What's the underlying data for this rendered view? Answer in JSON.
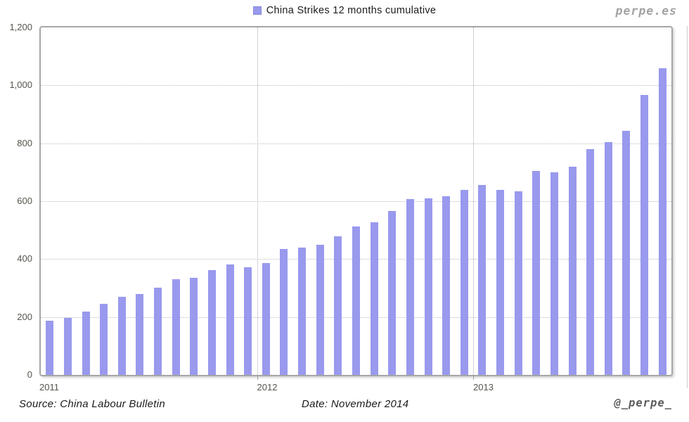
{
  "branding": {
    "site": "perpe.es",
    "handle": "@_perpe_"
  },
  "legend": {
    "label": "China Strikes 12 months cumulative"
  },
  "footer": {
    "source": "Source: China Labour Bulletin",
    "date": "Date: November 2014"
  },
  "colors": {
    "bar": "#9999EE",
    "gridline": "#bcbcbc",
    "plot_border": "#a6a6a6",
    "axis_text": "#55554d",
    "brand_text": "#a3a3a3"
  },
  "chart_data": {
    "type": "bar",
    "title": "China Strikes 12 months cumulative",
    "xlabel": "",
    "ylabel": "",
    "ylim": [
      0,
      1200
    ],
    "yticks": [
      0,
      200,
      400,
      600,
      800,
      1000,
      1200
    ],
    "ytick_labels": [
      "0",
      "200",
      "400",
      "600",
      "800",
      "1,000",
      "1,200"
    ],
    "grid": "horizontal dotted lines at each ytick, vertical dotted separators at year starts",
    "legend_position": "top-center",
    "months": [
      "2011-01",
      "2011-02",
      "2011-03",
      "2011-04",
      "2011-05",
      "2011-06",
      "2011-07",
      "2011-08",
      "2011-09",
      "2011-10",
      "2011-11",
      "2011-12",
      "2012-01",
      "2012-02",
      "2012-03",
      "2012-04",
      "2012-05",
      "2012-06",
      "2012-07",
      "2012-08",
      "2012-09",
      "2012-10",
      "2012-11",
      "2012-12",
      "2013-01",
      "2013-02",
      "2013-03",
      "2013-04",
      "2013-05",
      "2013-06",
      "2013-07",
      "2013-08",
      "2013-09",
      "2013-10",
      "2013-11"
    ],
    "values": [
      187,
      198,
      218,
      245,
      269,
      279,
      302,
      330,
      335,
      361,
      382,
      371,
      386,
      435,
      440,
      450,
      478,
      512,
      526,
      565,
      607,
      610,
      618,
      638,
      656,
      639,
      634,
      705,
      700,
      720,
      780,
      804,
      843,
      967,
      1060
    ],
    "year_labels": [
      {
        "label": "2011",
        "start_index": 0
      },
      {
        "label": "2012",
        "start_index": 12
      },
      {
        "label": "2013",
        "start_index": 24
      }
    ]
  }
}
